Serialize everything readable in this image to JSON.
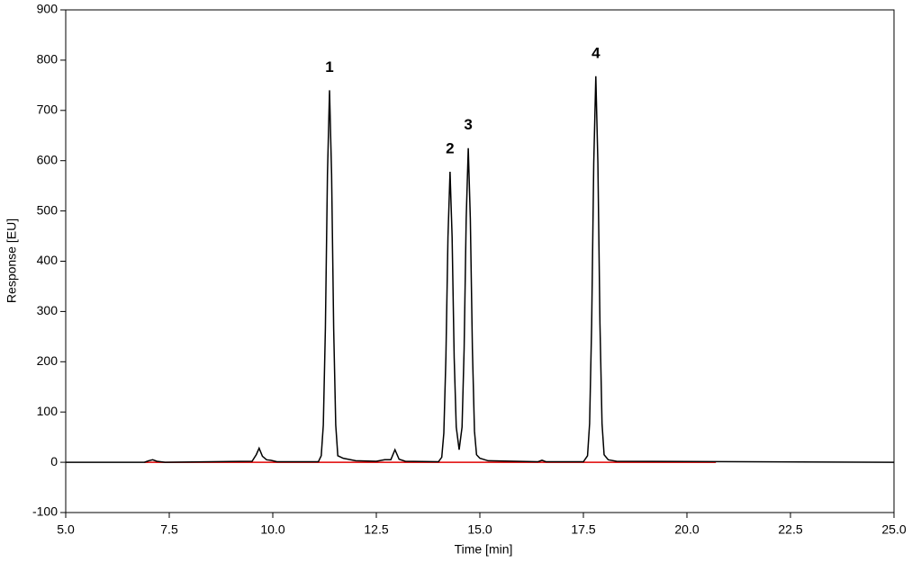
{
  "chart_data": {
    "type": "line",
    "xlabel": "Time [min]",
    "ylabel": "Response [EU]",
    "xlim": [
      5,
      25
    ],
    "ylim": [
      -100,
      900
    ],
    "xticks": [
      {
        "value": 5,
        "label": "5.0"
      },
      {
        "value": 7.5,
        "label": "7.5"
      },
      {
        "value": 10,
        "label": "10.0"
      },
      {
        "value": 12.5,
        "label": "12.5"
      },
      {
        "value": 15,
        "label": "15.0"
      },
      {
        "value": 17.5,
        "label": "17.5"
      },
      {
        "value": 20,
        "label": "20.0"
      },
      {
        "value": 22.5,
        "label": "22.5"
      },
      {
        "value": 25,
        "label": "25.0"
      }
    ],
    "yticks": [
      -100,
      0,
      100,
      200,
      300,
      400,
      500,
      600,
      700,
      800,
      900
    ],
    "grid": false,
    "series": [
      {
        "color": "#000000",
        "x": [
          5,
          6.9,
          7.0,
          7.1,
          7.2,
          7.4,
          9.5,
          9.6,
          9.67,
          9.75,
          9.85,
          9.95,
          10.1,
          11.1,
          11.17,
          11.22,
          11.27,
          11.32,
          11.37,
          11.42,
          11.47,
          11.52,
          11.57,
          11.7,
          12.0,
          12.5,
          12.7,
          12.85,
          12.95,
          13.05,
          13.2,
          14.0,
          14.08,
          14.13,
          14.18,
          14.23,
          14.28,
          14.33,
          14.38,
          14.43,
          14.5,
          14.57,
          14.62,
          14.67,
          14.72,
          14.77,
          14.82,
          14.87,
          14.92,
          15.0,
          15.2,
          16.4,
          16.5,
          16.6,
          17.5,
          17.6,
          17.65,
          17.7,
          17.75,
          17.8,
          17.85,
          17.9,
          17.95,
          18.0,
          18.1,
          18.3,
          25
        ],
        "values": [
          0,
          0,
          3,
          5,
          2,
          0,
          2,
          15,
          28,
          12,
          5,
          4,
          1,
          1,
          13,
          74,
          266,
          573,
          740,
          573,
          266,
          74,
          13,
          8,
          3,
          2,
          5,
          5,
          25,
          6,
          2,
          1,
          10,
          58,
          208,
          448,
          578,
          448,
          208,
          70,
          25,
          70,
          225,
          484,
          625,
          484,
          225,
          62,
          15,
          8,
          3,
          1,
          4,
          1,
          1,
          13,
          77,
          276,
          595,
          768,
          595,
          276,
          77,
          15,
          5,
          2,
          0
        ]
      },
      {
        "color": "#e00000",
        "x": [
          6.9,
          20.7
        ],
        "values": [
          0,
          0
        ]
      }
    ],
    "annotations": [
      {
        "text": "1",
        "x": 11.37,
        "y": 740
      },
      {
        "text": "2",
        "x": 14.28,
        "y": 578
      },
      {
        "text": "3",
        "x": 14.72,
        "y": 625
      },
      {
        "text": "4",
        "x": 17.8,
        "y": 768
      }
    ]
  }
}
